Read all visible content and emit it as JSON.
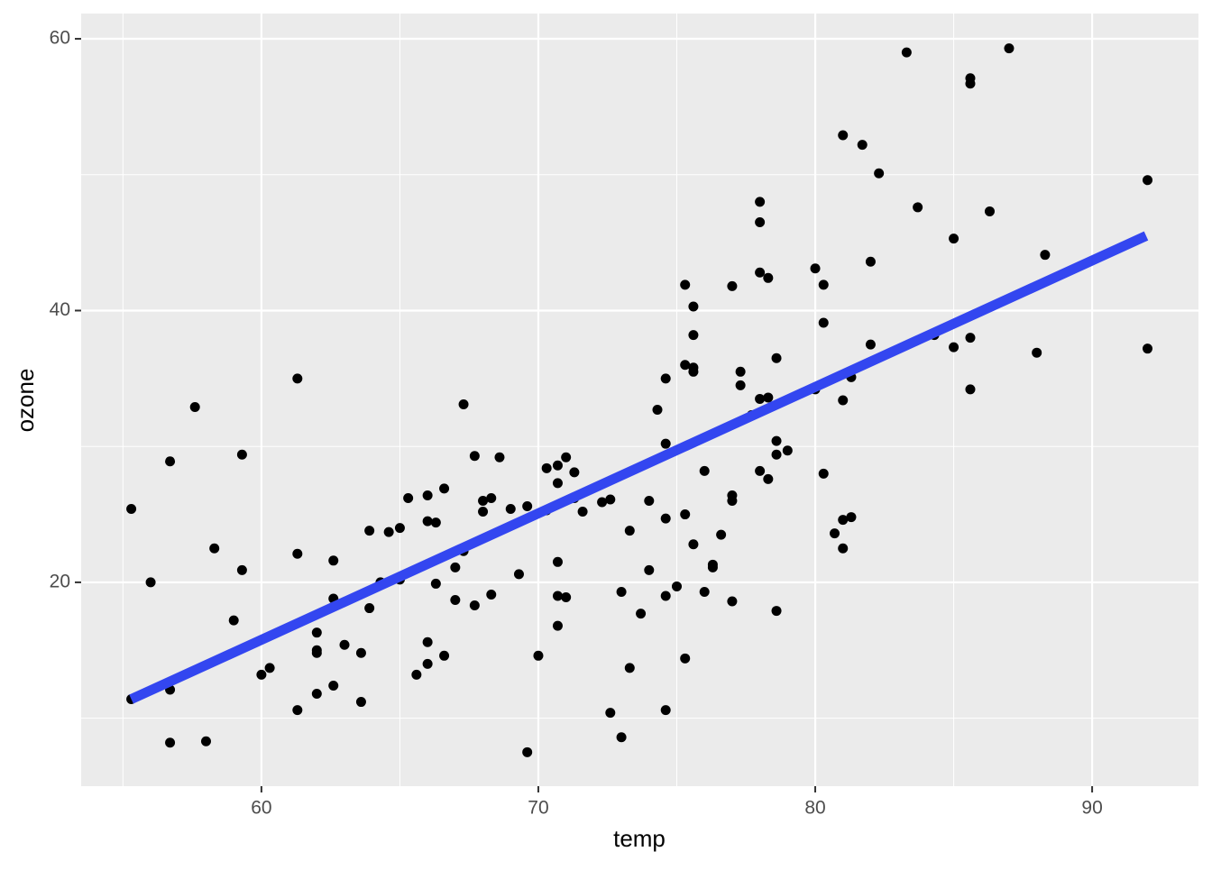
{
  "chart_data": {
    "type": "scatter",
    "x_label": "temp",
    "y_label": "ozone",
    "xlim": [
      53.49,
      93.84
    ],
    "ylim": [
      5.0,
      61.86
    ],
    "xticks": [
      60,
      70,
      80,
      90
    ],
    "yticks": [
      20,
      40,
      60
    ],
    "x_minor_grid": [
      55,
      65,
      75,
      85
    ],
    "y_minor_grid": [
      10,
      30,
      50
    ],
    "grid": true,
    "background": "#ebebeb",
    "series": [
      {
        "color": "#000000",
        "x": [
          55.3,
          56.0,
          56.7,
          56.7,
          56.7,
          57.6,
          58.0,
          58.3,
          59.0,
          59.3,
          59.3,
          55.3,
          60.0,
          60.3,
          61.3,
          61.3,
          61.3,
          62.0,
          62.0,
          62.0,
          62.0,
          62.6,
          62.6,
          62.6,
          63.0,
          63.6,
          63.6,
          63.9,
          63.9,
          64.3,
          64.6,
          65.0,
          65.0,
          65.3,
          65.6,
          66.0,
          66.0,
          66.0,
          66.0,
          66.3,
          66.3,
          66.6,
          66.6,
          67.0,
          67.0,
          67.3,
          67.3,
          67.7,
          67.7,
          68.0,
          68.0,
          68.3,
          68.3,
          68.6,
          69.0,
          69.3,
          69.6,
          69.6,
          70.0,
          70.3,
          70.3,
          70.7,
          70.7,
          70.7,
          70.7,
          70.7,
          71.0,
          71.0,
          71.3,
          71.3,
          71.6,
          72.3,
          72.6,
          72.6,
          73.0,
          73.0,
          73.3,
          73.3,
          73.7,
          74.0,
          74.0,
          74.3,
          74.6,
          74.6,
          74.6,
          74.6,
          74.6,
          75.0,
          75.3,
          75.3,
          75.3,
          75.3,
          75.6,
          75.6,
          75.6,
          75.6,
          75.6,
          76.0,
          76.0,
          76.3,
          76.3,
          76.6,
          77.0,
          77.0,
          77.0,
          77.0,
          77.3,
          77.3,
          77.7,
          78.0,
          78.0,
          78.0,
          78.0,
          78.0,
          78.3,
          78.3,
          78.3,
          78.6,
          78.6,
          78.6,
          78.6,
          79.0,
          80.0,
          80.0,
          80.3,
          80.3,
          80.3,
          80.7,
          81.0,
          81.0,
          81.0,
          81.0,
          81.3,
          81.3,
          81.7,
          82.0,
          82.0,
          82.3,
          83.3,
          83.7,
          84.3,
          85.0,
          85.0,
          85.6,
          85.6,
          85.6,
          85.6,
          86.3,
          87.0,
          88.0,
          88.3,
          92.0,
          92.0
        ],
        "values": [
          25.4,
          20.0,
          28.9,
          12.1,
          8.2,
          32.9,
          8.3,
          22.5,
          17.2,
          29.4,
          20.9,
          11.4,
          13.2,
          13.7,
          35.0,
          22.1,
          10.6,
          16.3,
          15.0,
          14.8,
          11.8,
          21.6,
          18.8,
          12.4,
          15.4,
          14.8,
          11.2,
          23.8,
          18.1,
          20.0,
          23.7,
          24.0,
          20.2,
          26.2,
          13.2,
          26.4,
          24.5,
          15.6,
          14.0,
          24.4,
          19.9,
          26.9,
          14.6,
          21.1,
          18.7,
          33.1,
          22.3,
          29.3,
          18.3,
          26.0,
          25.2,
          26.2,
          19.1,
          29.2,
          25.4,
          20.6,
          25.6,
          7.5,
          14.6,
          28.4,
          25.3,
          28.6,
          27.3,
          21.5,
          19.0,
          16.8,
          29.2,
          18.9,
          28.1,
          26.2,
          25.2,
          25.9,
          26.1,
          10.4,
          19.3,
          8.6,
          23.8,
          13.7,
          17.7,
          26.0,
          20.9,
          32.7,
          35.0,
          30.2,
          24.7,
          19.0,
          10.6,
          19.7,
          41.9,
          36.0,
          25.0,
          14.4,
          40.3,
          38.2,
          35.8,
          35.5,
          22.8,
          28.2,
          19.3,
          21.3,
          21.1,
          23.5,
          41.8,
          26.4,
          26.0,
          18.6,
          35.5,
          34.5,
          32.3,
          48.0,
          46.5,
          42.8,
          33.5,
          28.2,
          42.4,
          33.6,
          27.6,
          36.5,
          30.4,
          29.4,
          17.9,
          29.7,
          43.1,
          34.2,
          41.9,
          39.1,
          28.0,
          23.6,
          52.9,
          33.4,
          24.6,
          22.5,
          35.1,
          24.8,
          52.2,
          43.6,
          37.5,
          50.1,
          59.0,
          47.6,
          38.2,
          45.3,
          37.3,
          57.1,
          56.7,
          38.0,
          34.2,
          47.3,
          59.3,
          36.9,
          44.1,
          49.6,
          37.2
        ]
      }
    ],
    "fit": {
      "color": "#3346f0",
      "x": [
        55.3,
        91.95
      ],
      "y": [
        11.4,
        45.5
      ]
    }
  }
}
